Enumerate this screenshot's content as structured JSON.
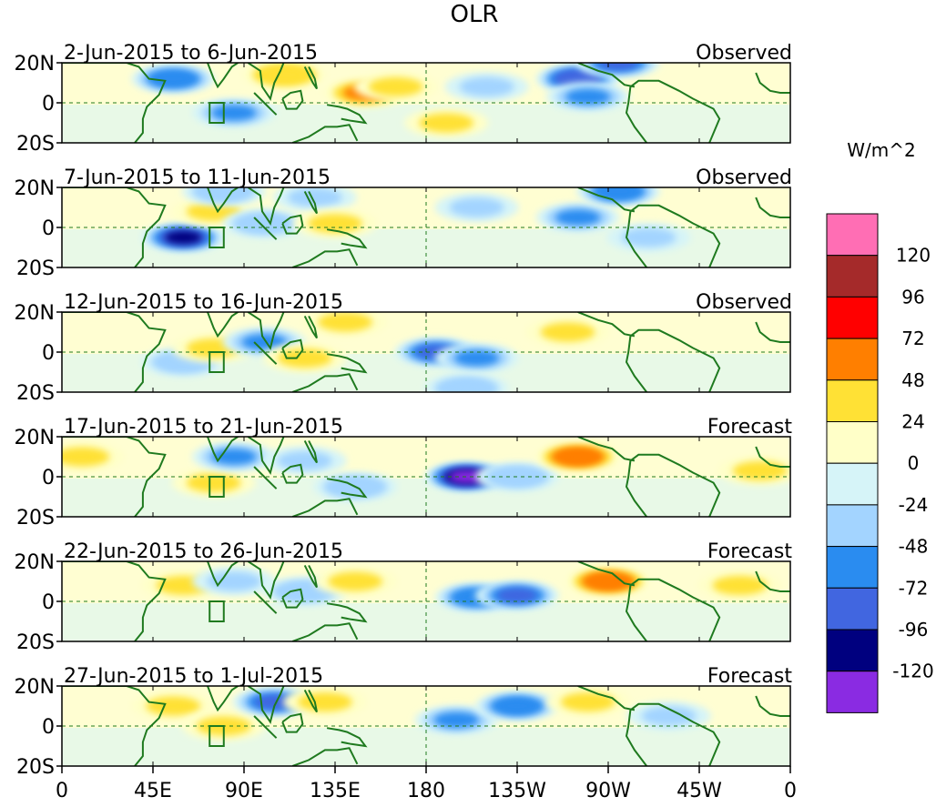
{
  "chart_data": {
    "type": "heatmap",
    "title": "OLR",
    "colorbar_label": "W/m^2",
    "colorbar_levels": [
      "120",
      "96",
      "72",
      "48",
      "24",
      "0",
      "-24",
      "-48",
      "-72",
      "-96",
      "-120"
    ],
    "colorbar_colors": [
      "#ff6eb4",
      "#a52a2a",
      "#ff0000",
      "#ff7f00",
      "#ffe135",
      "#ffffc8",
      "#d6f4f8",
      "#a3d4ff",
      "#2a8cf0",
      "#4166e0",
      "#00007f",
      "#8a2be2"
    ],
    "x_ticks": [
      "0",
      "45E",
      "90E",
      "135E",
      "180",
      "135W",
      "90W",
      "45W",
      "0"
    ],
    "y_ticks": [
      "20N",
      "0",
      "20S"
    ],
    "panels": [
      {
        "period": "2-Jun-2015 to 6-Jun-2015",
        "kind": "Observed",
        "anomalies": [
          {
            "lon": 55,
            "lat": 12,
            "value": -60
          },
          {
            "lon": 85,
            "lat": -5,
            "value": -55
          },
          {
            "lon": 110,
            "lat": 14,
            "value": 40
          },
          {
            "lon": 150,
            "lat": 5,
            "value": 48
          },
          {
            "lon": 165,
            "lat": 8,
            "value": 30
          },
          {
            "lon": 190,
            "lat": -10,
            "value": 30
          },
          {
            "lon": 210,
            "lat": 8,
            "value": -25
          },
          {
            "lon": 255,
            "lat": 12,
            "value": -90
          },
          {
            "lon": 260,
            "lat": 3,
            "value": -50
          },
          {
            "lon": 275,
            "lat": 20,
            "value": -80
          }
        ]
      },
      {
        "period": "7-Jun-2015 to 11-Jun-2015",
        "kind": "Observed",
        "anomalies": [
          {
            "lon": 60,
            "lat": -5,
            "value": -100
          },
          {
            "lon": 75,
            "lat": 8,
            "value": 28
          },
          {
            "lon": 80,
            "lat": 18,
            "value": -40
          },
          {
            "lon": 100,
            "lat": 2,
            "value": -40
          },
          {
            "lon": 125,
            "lat": 15,
            "value": -30
          },
          {
            "lon": 135,
            "lat": 2,
            "value": 28
          },
          {
            "lon": 205,
            "lat": 10,
            "value": -30
          },
          {
            "lon": 255,
            "lat": 5,
            "value": -50
          },
          {
            "lon": 275,
            "lat": 18,
            "value": -60
          },
          {
            "lon": 290,
            "lat": -5,
            "value": -30
          }
        ]
      },
      {
        "period": "12-Jun-2015 to 16-Jun-2015",
        "kind": "Observed",
        "anomalies": [
          {
            "lon": 60,
            "lat": -5,
            "value": -40
          },
          {
            "lon": 75,
            "lat": 2,
            "value": 30
          },
          {
            "lon": 100,
            "lat": 5,
            "value": -50
          },
          {
            "lon": 120,
            "lat": -3,
            "value": 28
          },
          {
            "lon": 140,
            "lat": 15,
            "value": 30
          },
          {
            "lon": 185,
            "lat": 0,
            "value": -80
          },
          {
            "lon": 205,
            "lat": -3,
            "value": -50
          },
          {
            "lon": 250,
            "lat": 10,
            "value": 30
          },
          {
            "lon": 200,
            "lat": -18,
            "value": -40
          }
        ]
      },
      {
        "period": "17-Jun-2015 to 21-Jun-2015",
        "kind": "Forecast",
        "anomalies": [
          {
            "lon": 10,
            "lat": 10,
            "value": 30
          },
          {
            "lon": 75,
            "lat": -3,
            "value": 30
          },
          {
            "lon": 85,
            "lat": 10,
            "value": -50
          },
          {
            "lon": 120,
            "lat": 8,
            "value": -30
          },
          {
            "lon": 145,
            "lat": -5,
            "value": -40
          },
          {
            "lon": 200,
            "lat": 0,
            "value": -120
          },
          {
            "lon": 225,
            "lat": 0,
            "value": -45
          },
          {
            "lon": 255,
            "lat": 10,
            "value": 65
          },
          {
            "lon": 345,
            "lat": 3,
            "value": 28
          }
        ]
      },
      {
        "period": "22-Jun-2015 to 26-Jun-2015",
        "kind": "Forecast",
        "anomalies": [
          {
            "lon": 60,
            "lat": 8,
            "value": 28
          },
          {
            "lon": 85,
            "lat": 10,
            "value": -35
          },
          {
            "lon": 120,
            "lat": 5,
            "value": -40
          },
          {
            "lon": 145,
            "lat": 10,
            "value": 30
          },
          {
            "lon": 205,
            "lat": 2,
            "value": -65
          },
          {
            "lon": 225,
            "lat": 3,
            "value": -80
          },
          {
            "lon": 270,
            "lat": 10,
            "value": 70
          },
          {
            "lon": 335,
            "lat": 8,
            "value": 28
          }
        ]
      },
      {
        "period": "27-Jun-2015 to 1-Jul-2015",
        "kind": "Forecast",
        "anomalies": [
          {
            "lon": 55,
            "lat": 10,
            "value": 30
          },
          {
            "lon": 80,
            "lat": 0,
            "value": 32
          },
          {
            "lon": 105,
            "lat": 12,
            "value": -80
          },
          {
            "lon": 130,
            "lat": 12,
            "value": 28
          },
          {
            "lon": 195,
            "lat": 3,
            "value": -55
          },
          {
            "lon": 225,
            "lat": 10,
            "value": -65
          },
          {
            "lon": 260,
            "lat": 12,
            "value": 30
          },
          {
            "lon": 300,
            "lat": 5,
            "value": -30
          }
        ]
      }
    ]
  }
}
